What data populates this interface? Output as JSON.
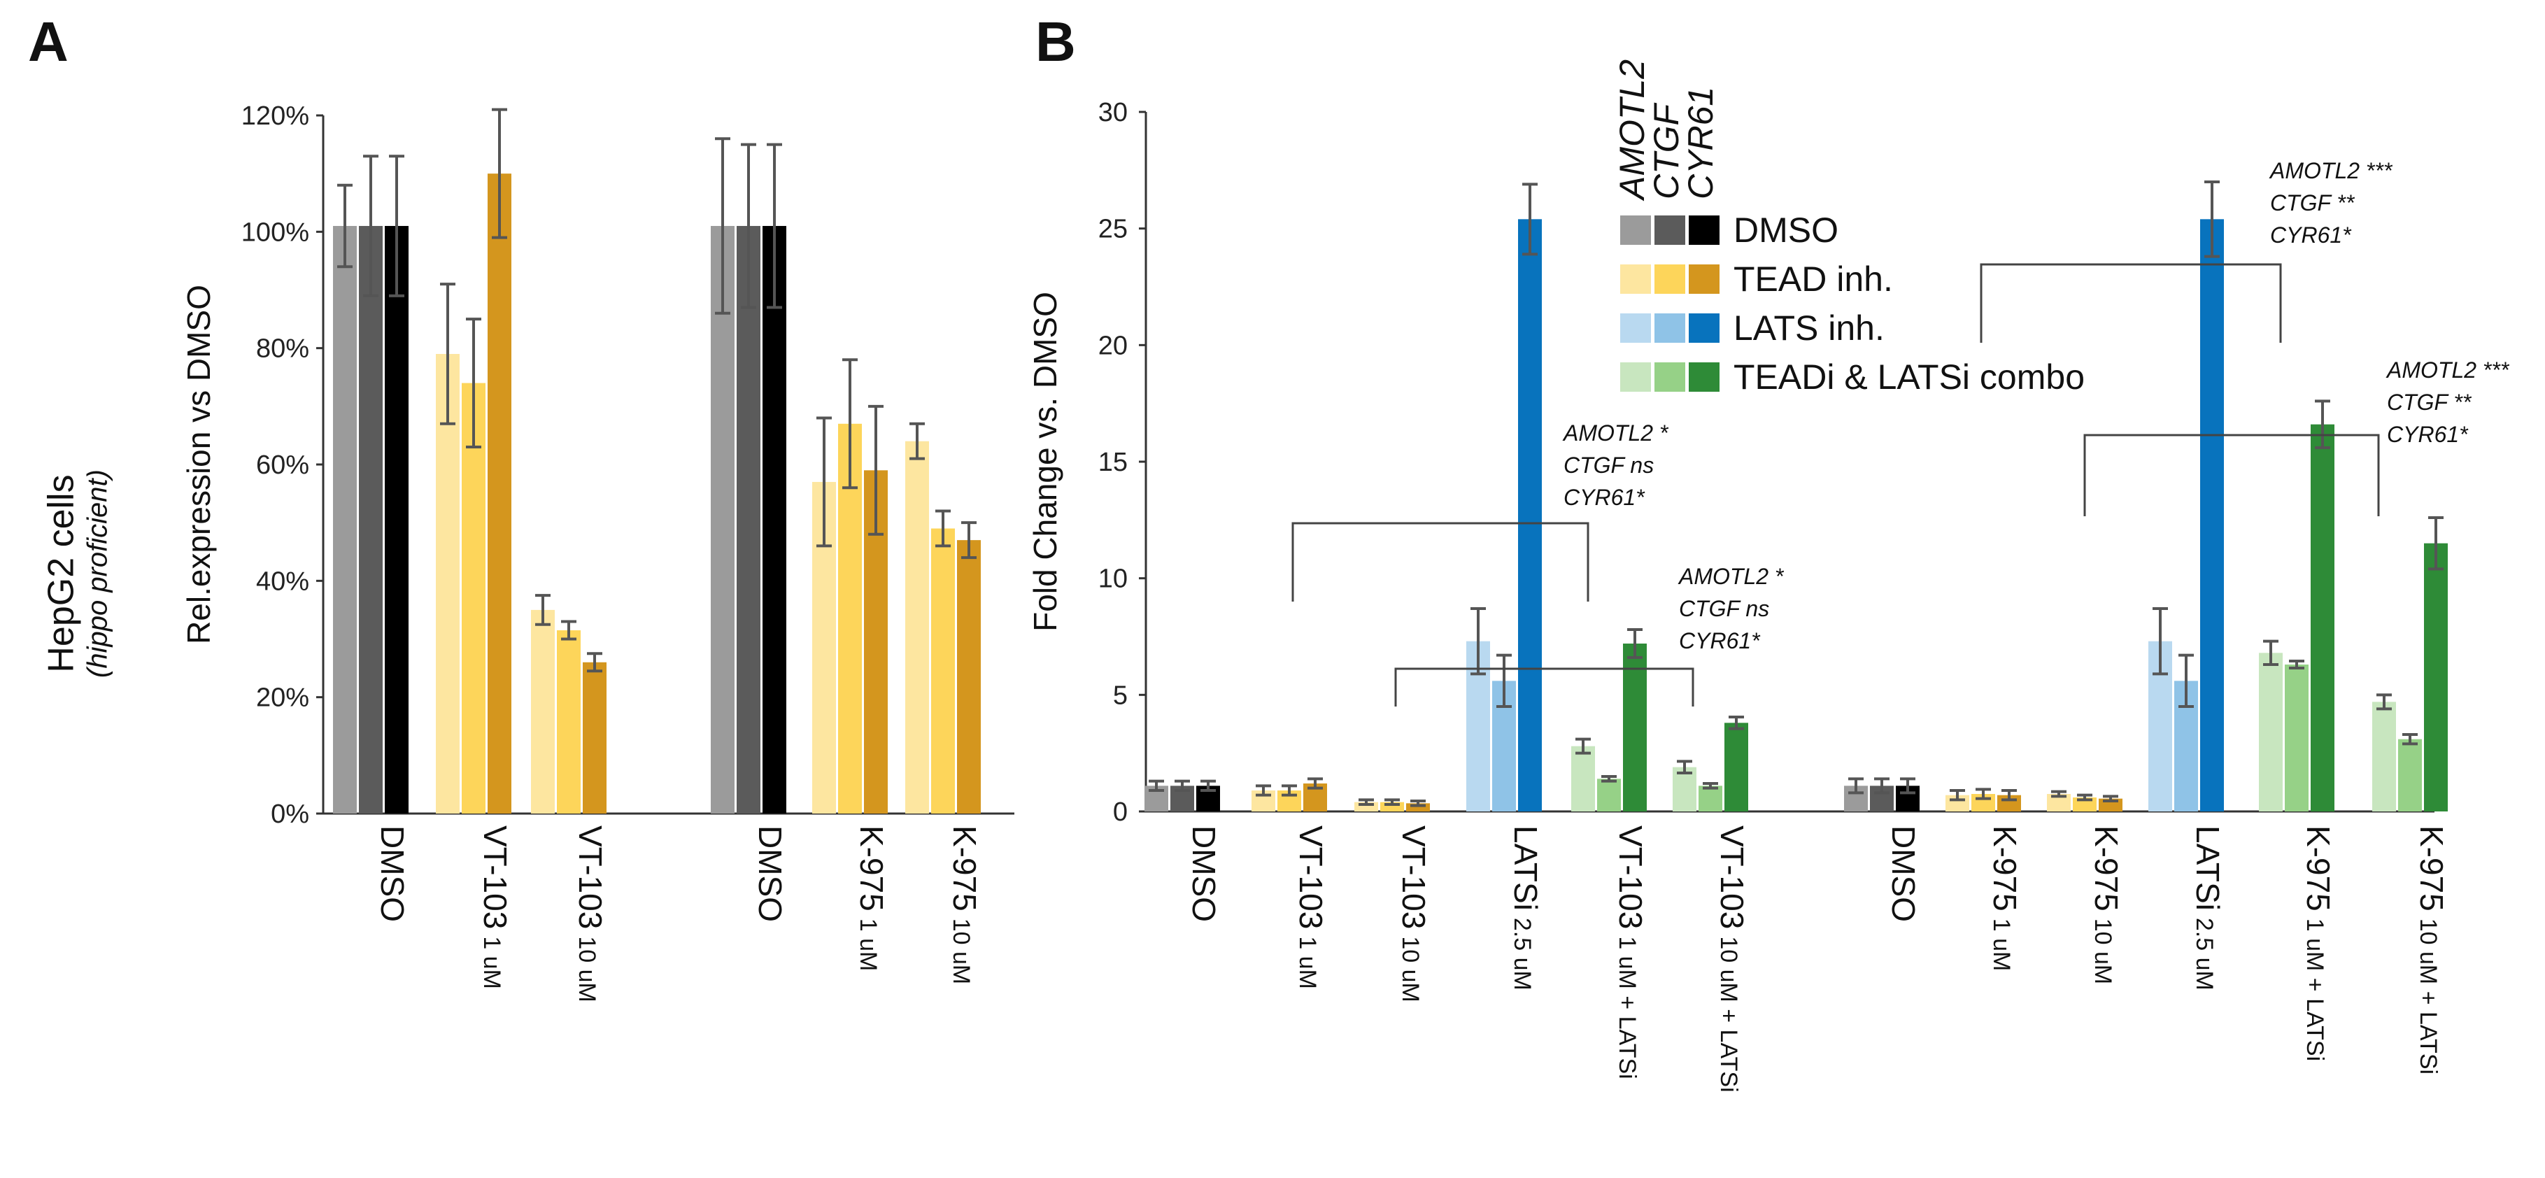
{
  "panels": {
    "a": "A",
    "b": "B"
  },
  "cell_line": {
    "title": "HepG2 cells",
    "subtitle": "(hippo proficient)"
  },
  "legend": {
    "genes": [
      "AMOTL2",
      "CTGF",
      "CYR61"
    ],
    "treatments": [
      {
        "label": "DMSO",
        "colors": [
          "#9b9b9b",
          "#5b5b5b",
          "#000000"
        ]
      },
      {
        "label": "TEAD inh.",
        "colors": [
          "#fde6a0",
          "#fdd55a",
          "#d4961e"
        ]
      },
      {
        "label": "LATS inh.",
        "colors": [
          "#b9d9f0",
          "#8fc3e7",
          "#0873bd"
        ]
      },
      {
        "label": "TEADi & LATSi combo",
        "colors": [
          "#c8e6bf",
          "#96d187",
          "#2e8b37"
        ]
      }
    ]
  },
  "chart_data": [
    {
      "type": "bar",
      "panel": "A",
      "ylabel": "Rel.expression vs DMSO",
      "ylim": [
        0,
        120
      ],
      "yticks": [
        "0%",
        "20%",
        "40%",
        "60%",
        "80%",
        "100%",
        "120%"
      ],
      "groups": [
        {
          "label": "DMSO",
          "sub": "",
          "color_set": 0,
          "values": [
            101,
            101,
            101
          ],
          "errors": [
            7,
            12,
            12
          ]
        },
        {
          "label": "VT-103",
          "sub": "1 uM",
          "color_set": 1,
          "values": [
            79,
            74,
            110
          ],
          "errors": [
            12,
            11,
            11
          ]
        },
        {
          "label": "VT-103",
          "sub": "10 uM",
          "color_set": 1,
          "values": [
            35,
            31.5,
            26
          ],
          "errors": [
            2.5,
            1.5,
            1.5
          ]
        },
        {
          "label": "DMSO",
          "sub": "",
          "color_set": 0,
          "values": [
            101,
            101,
            101
          ],
          "errors": [
            15,
            14,
            14
          ]
        },
        {
          "label": "K-975",
          "sub": "1 uM",
          "color_set": 1,
          "values": [
            57,
            67,
            59
          ],
          "errors": [
            11,
            11,
            11
          ]
        },
        {
          "label": "K-975",
          "sub": "10 uM",
          "color_set": 1,
          "values": [
            64,
            49,
            47
          ],
          "errors": [
            3,
            3,
            3
          ]
        }
      ]
    },
    {
      "type": "bar",
      "panel": "B",
      "ylabel": "Fold Change vs. DMSO",
      "ylim": [
        0,
        30
      ],
      "yticks": [
        "0",
        "5",
        "10",
        "15",
        "20",
        "25",
        "30"
      ],
      "groups": [
        {
          "label": "DMSO",
          "sub": "",
          "color_set": 0,
          "values": [
            1.1,
            1.1,
            1.1
          ],
          "errors": [
            0.2,
            0.2,
            0.2
          ]
        },
        {
          "label": "VT-103",
          "sub": "1 uM",
          "color_set": 1,
          "values": [
            0.9,
            0.9,
            1.2
          ],
          "errors": [
            0.2,
            0.2,
            0.2
          ]
        },
        {
          "label": "VT-103",
          "sub": "10 uM",
          "color_set": 1,
          "values": [
            0.4,
            0.4,
            0.35
          ],
          "errors": [
            0.1,
            0.1,
            0.1
          ]
        },
        {
          "label": "LATSi",
          "sub": "2.5 uM",
          "color_set": 2,
          "values": [
            7.3,
            5.6,
            25.4
          ],
          "errors": [
            1.4,
            1.1,
            1.5
          ]
        },
        {
          "label": "VT-103",
          "sub": "1 uM + LATSi",
          "color_set": 3,
          "values": [
            2.8,
            1.4,
            7.2
          ],
          "errors": [
            0.3,
            0.1,
            0.6
          ]
        },
        {
          "label": "VT-103",
          "sub": "10 uM + LATSi",
          "color_set": 3,
          "values": [
            1.9,
            1.1,
            3.8
          ],
          "errors": [
            0.25,
            0.1,
            0.25
          ]
        },
        {
          "label": "DMSO",
          "sub": "",
          "color_set": 0,
          "values": [
            1.1,
            1.1,
            1.1
          ],
          "errors": [
            0.3,
            0.3,
            0.3
          ]
        },
        {
          "label": "K-975",
          "sub": "1 uM",
          "color_set": 1,
          "values": [
            0.7,
            0.75,
            0.7
          ],
          "errors": [
            0.2,
            0.2,
            0.2
          ]
        },
        {
          "label": "K-975",
          "sub": "10 uM",
          "color_set": 1,
          "values": [
            0.75,
            0.6,
            0.55
          ],
          "errors": [
            0.1,
            0.1,
            0.1
          ]
        },
        {
          "label": "LATSi",
          "sub": "2.5 uM",
          "color_set": 2,
          "values": [
            7.3,
            5.6,
            25.4
          ],
          "errors": [
            1.4,
            1.1,
            1.6
          ]
        },
        {
          "label": "K-975",
          "sub": "1 uM + LATSi",
          "color_set": 3,
          "values": [
            6.8,
            6.3,
            16.6
          ],
          "errors": [
            0.5,
            0.15,
            1.0
          ]
        },
        {
          "label": "K-975",
          "sub": "10 uM + LATSi",
          "color_set": 3,
          "values": [
            4.7,
            3.1,
            11.5
          ],
          "errors": [
            0.3,
            0.2,
            1.1
          ]
        }
      ],
      "annotations": [
        {
          "lines": [
            "AMOTL2 *",
            "CTGF ns",
            "CYR61*"
          ]
        },
        {
          "lines": [
            "AMOTL2 *",
            "CTGF ns",
            "CYR61*"
          ]
        },
        {
          "lines": [
            "AMOTL2 ***",
            "CTGF **",
            "CYR61*"
          ]
        },
        {
          "lines": [
            "AMOTL2 ***",
            "CTGF **",
            "CYR61*"
          ]
        }
      ]
    }
  ]
}
